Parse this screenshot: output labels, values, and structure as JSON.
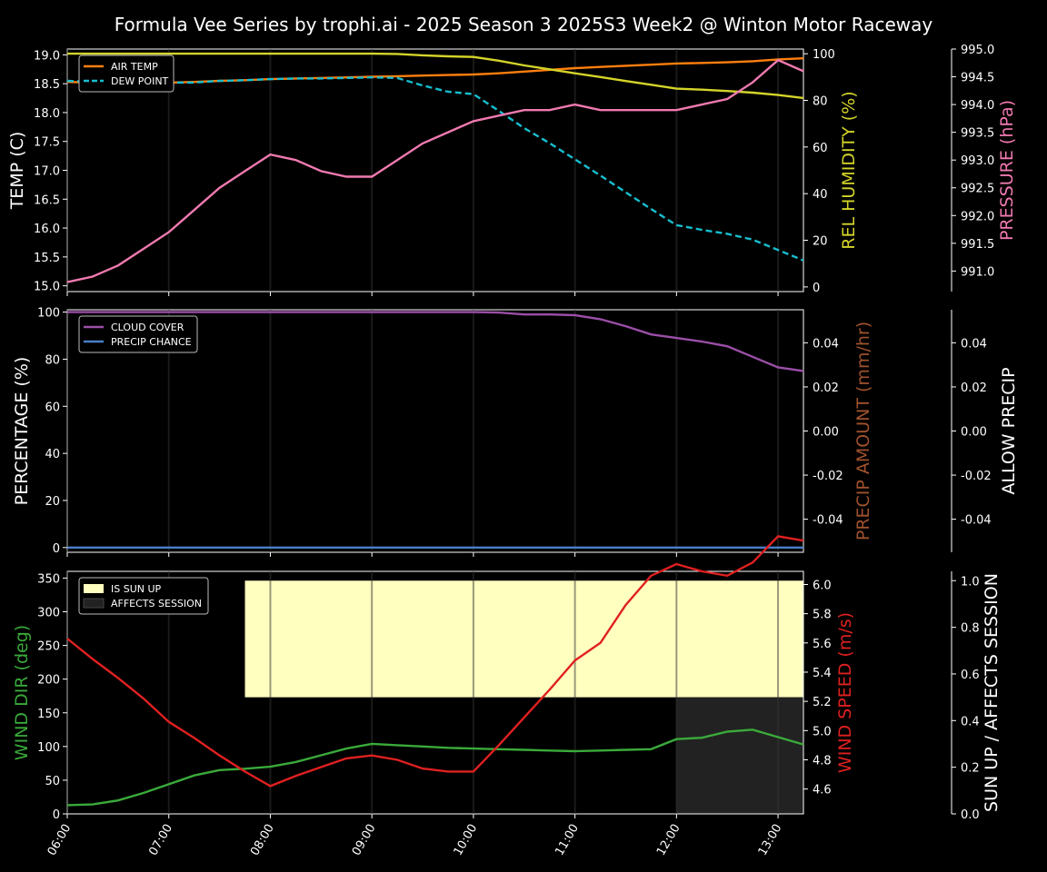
{
  "colors": {
    "background": "#000000",
    "air_temp": "#ff7f0e",
    "dew_point": "#17becf",
    "humidity": "#d4d42a",
    "pressure": "#f07ab0",
    "cloud": "#9b4fa8",
    "precip_chance": "#4a7fc8",
    "precip_amount_label": "#a0522d",
    "wind_dir": "#3aaa3a",
    "wind_speed": "#e02020",
    "sun_up": "#ffffc0",
    "affects_session": "#222222",
    "white": "#ffffff"
  },
  "chart_data": [
    {
      "type": "line",
      "title": "Formula Vee Series by trophi.ai - 2025 Season 3 2025S3 Week2 @ Winton Motor Raceway",
      "x_ticks": [
        "06:00",
        "07:00",
        "08:00",
        "09:00",
        "10:00",
        "11:00",
        "12:00",
        "13:00"
      ],
      "x": [
        "06:00",
        "06:15",
        "06:30",
        "06:45",
        "07:00",
        "07:15",
        "07:30",
        "07:45",
        "08:00",
        "08:15",
        "08:30",
        "08:45",
        "09:00",
        "09:15",
        "09:30",
        "09:45",
        "10:00",
        "10:15",
        "10:30",
        "10:45",
        "11:00",
        "11:15",
        "11:30",
        "11:45",
        "12:00",
        "12:15",
        "12:30",
        "12:45",
        "13:00",
        "13:15"
      ],
      "xlim": [
        "06:00",
        "13:15"
      ],
      "ylabel": "TEMP (C)",
      "ylim": [
        14.9,
        19.1
      ],
      "y_ticks": [
        15.0,
        15.5,
        16.0,
        16.5,
        17.0,
        17.5,
        18.0,
        18.5,
        19.0
      ],
      "legend": [
        "AIR TEMP",
        "DEW POINT"
      ],
      "legend_position": "top-left",
      "series": [
        {
          "name": "AIR TEMP",
          "axis": "left",
          "style": "solid",
          "values": [
            18.53,
            18.52,
            18.52,
            18.52,
            18.52,
            18.53,
            18.55,
            18.56,
            18.58,
            18.59,
            18.6,
            18.61,
            18.62,
            18.63,
            18.64,
            18.65,
            18.66,
            18.68,
            18.71,
            18.74,
            18.77,
            18.79,
            18.81,
            18.83,
            18.85,
            18.86,
            18.87,
            18.89,
            18.92,
            18.94
          ]
        },
        {
          "name": "DEW POINT",
          "axis": "left",
          "style": "dashed",
          "values": [
            18.55,
            18.53,
            18.52,
            18.52,
            18.52,
            18.52,
            18.55,
            18.56,
            18.58,
            18.59,
            18.59,
            18.6,
            18.61,
            18.6,
            18.47,
            18.36,
            18.32,
            18.03,
            17.73,
            17.47,
            17.19,
            16.91,
            16.62,
            16.33,
            16.05,
            15.97,
            15.9,
            15.8,
            15.62,
            15.44
          ]
        },
        {
          "name": "REL HUMIDITY",
          "axis": "right1",
          "style": "solid",
          "ylabel": "REL HUMIDITY (%)",
          "ylim": [
            -2,
            102
          ],
          "y_ticks": [
            0,
            20,
            40,
            60,
            80,
            100
          ],
          "values": [
            100,
            100,
            100,
            100,
            100,
            100,
            100,
            100,
            100,
            100,
            100,
            100,
            100,
            99.9,
            99.3,
            98.9,
            98.6,
            97.0,
            95.0,
            93.3,
            91.6,
            90.0,
            88.3,
            86.7,
            85.0,
            84.6,
            84.0,
            83.3,
            82.3,
            81.0
          ]
        },
        {
          "name": "PRESSURE",
          "axis": "right2",
          "style": "solid",
          "ylabel": "PRESSURE (hPa)",
          "ylim": [
            990.63,
            995.0
          ],
          "y_ticks": [
            991.0,
            991.5,
            992.0,
            992.5,
            993.0,
            993.5,
            994.0,
            994.5,
            995.0
          ],
          "values": [
            990.8,
            990.9,
            991.1,
            991.4,
            991.7,
            992.1,
            992.5,
            992.8,
            993.1,
            993.0,
            992.8,
            992.7,
            992.7,
            993.0,
            993.3,
            993.5,
            993.7,
            993.8,
            993.9,
            993.9,
            994.0,
            993.9,
            993.9,
            993.9,
            993.9,
            994.0,
            994.1,
            994.4,
            994.8,
            994.6
          ]
        }
      ]
    },
    {
      "type": "line",
      "ylabel": "PERCENTAGE (%)",
      "ylim": [
        -2,
        101
      ],
      "y_ticks": [
        0,
        20,
        40,
        60,
        80,
        100
      ],
      "legend": [
        "CLOUD COVER",
        "PRECIP CHANCE"
      ],
      "legend_position": "top-left",
      "right1_label": "PRECIP AMOUNT (mm/hr)",
      "right1_ticks": [
        -0.04,
        -0.02,
        0.0,
        0.02,
        0.04
      ],
      "right1_ylim": [
        -0.055,
        0.055
      ],
      "right2_label": "ALLOW PRECIP",
      "right2_ticks": [
        -0.04,
        -0.02,
        0.0,
        0.02,
        0.04
      ],
      "right2_ylim": [
        -0.055,
        0.055
      ],
      "series": [
        {
          "name": "CLOUD COVER",
          "values": [
            100,
            100,
            100,
            100,
            100,
            100,
            100,
            100,
            100,
            100,
            100,
            100,
            100,
            100,
            100,
            100,
            100,
            99.8,
            99,
            99,
            98.7,
            97,
            94,
            90.5,
            89,
            87.5,
            85.5,
            81,
            76.5,
            75
          ]
        },
        {
          "name": "PRECIP CHANCE",
          "values": [
            0,
            0,
            0,
            0,
            0,
            0,
            0,
            0,
            0,
            0,
            0,
            0,
            0,
            0,
            0,
            0,
            0,
            0,
            0,
            0,
            0,
            0,
            0,
            0,
            0,
            0,
            0,
            0,
            0,
            0
          ]
        }
      ]
    },
    {
      "type": "line",
      "ylabel": "WIND DIR (deg)",
      "ylim": [
        0,
        360
      ],
      "y_ticks": [
        0,
        50,
        100,
        150,
        200,
        250,
        300,
        350
      ],
      "legend": [
        "IS SUN UP",
        "AFFECTS SESSION"
      ],
      "legend_position": "top-left",
      "right1_label": "WIND SPEED (m/s)",
      "right1_ylim": [
        4.43,
        6.09
      ],
      "right1_ticks": [
        4.6,
        4.8,
        5.0,
        5.2,
        5.4,
        5.6,
        5.8,
        6.0
      ],
      "right2_label": "SUN UP / AFFECTS SESSION",
      "right2_ylim": [
        0,
        1.04
      ],
      "right2_ticks": [
        0.0,
        0.2,
        0.4,
        0.6,
        0.8,
        1.0
      ],
      "sun_up": {
        "start": "07:45",
        "end": "13:15",
        "value": 1.0
      },
      "affects_session": {
        "start": "12:00",
        "end": "13:15",
        "value": 0.5
      },
      "series": [
        {
          "name": "WIND DIR",
          "axis": "left",
          "values": [
            13,
            14,
            20,
            31,
            44,
            57,
            65,
            67,
            70,
            77,
            87,
            97,
            104,
            102,
            100,
            98,
            97,
            96,
            95,
            94,
            93,
            94,
            95,
            96,
            111,
            113,
            122,
            125,
            114,
            103
          ]
        },
        {
          "name": "WIND SPEED",
          "axis": "right1",
          "values": [
            5.63,
            5.49,
            5.36,
            5.22,
            5.06,
            4.95,
            4.83,
            4.72,
            4.62,
            4.69,
            4.75,
            4.81,
            4.83,
            4.8,
            4.74,
            4.72,
            4.72,
            4.9,
            5.09,
            5.28,
            5.48,
            5.6,
            5.86,
            6.06,
            6.14,
            6.09,
            6.06,
            6.15,
            6.33,
            6.3
          ]
        }
      ]
    }
  ]
}
